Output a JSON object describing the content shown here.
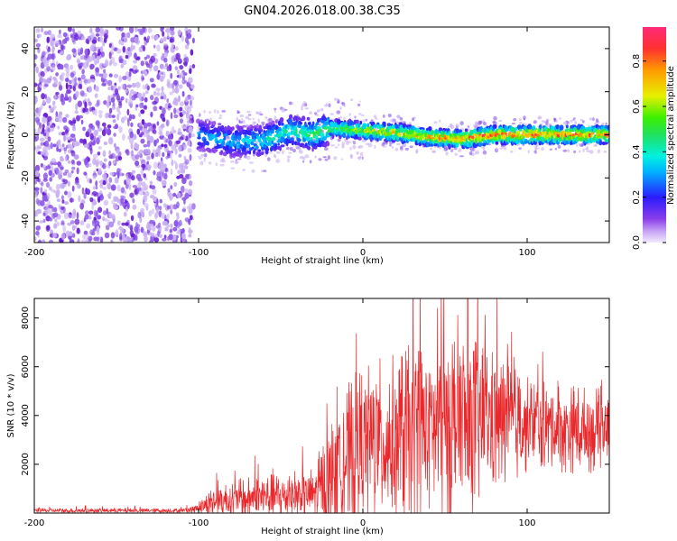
{
  "title": "GN04.2026.018.00.38.C35",
  "colors": {
    "snr_line": "#e8282b",
    "scatter_bg": "#c9b0f2",
    "scatter_mid": "#8a55e8",
    "scatter_dark": "#6a1fd6",
    "axis": "#000000"
  },
  "chart_data": [
    {
      "type": "heatmap",
      "xlabel": "Height of straight line (km)",
      "ylabel": "Frequency (Hz)",
      "xlim": [
        -200,
        150
      ],
      "ylim": [
        -50,
        50
      ],
      "x_ticks": [
        {
          "value": -200,
          "label": "-200"
        },
        {
          "value": -100,
          "label": "-100"
        },
        {
          "value": 0,
          "label": "0"
        },
        {
          "value": 100,
          "label": "100"
        }
      ],
      "y_ticks": [
        {
          "value": -40,
          "label": "-40"
        },
        {
          "value": -20,
          "label": "-20"
        },
        {
          "value": 0,
          "label": "0"
        },
        {
          "value": 20,
          "label": "20"
        },
        {
          "value": 40,
          "label": "40"
        }
      ],
      "colorbar": {
        "label": "Normalized spectral amplitude",
        "range": [
          0,
          0.95
        ],
        "ticks": [
          {
            "value": 0.0,
            "label": "0.0"
          },
          {
            "value": 0.2,
            "label": "0.2"
          },
          {
            "value": 0.4,
            "label": "0.4"
          },
          {
            "value": 0.6,
            "label": "0.6"
          },
          {
            "value": 0.8,
            "label": "0.8"
          }
        ]
      },
      "ridge": {
        "description_x_range": [
          -100,
          150
        ],
        "center_frequency": [
          {
            "x": -100,
            "f": 0
          },
          {
            "x": -80,
            "f": -3
          },
          {
            "x": -60,
            "f": -3
          },
          {
            "x": -45,
            "f": 2
          },
          {
            "x": -30,
            "f": 0
          },
          {
            "x": -20,
            "f": 3
          },
          {
            "x": 0,
            "f": 2
          },
          {
            "x": 20,
            "f": 1
          },
          {
            "x": 40,
            "f": -1
          },
          {
            "x": 60,
            "f": -2
          },
          {
            "x": 80,
            "f": 0
          },
          {
            "x": 100,
            "f": 0
          },
          {
            "x": 150,
            "f": 0
          }
        ],
        "peak_amplitude": [
          {
            "x": -100,
            "a": 0.35
          },
          {
            "x": -60,
            "a": 0.45
          },
          {
            "x": -20,
            "a": 0.6
          },
          {
            "x": 10,
            "a": 0.75
          },
          {
            "x": 40,
            "a": 0.85
          },
          {
            "x": 80,
            "a": 0.95
          },
          {
            "x": 150,
            "a": 0.9
          }
        ]
      },
      "noise_region_x_range": [
        -200,
        -103
      ]
    },
    {
      "type": "line",
      "xlabel": "Height of straight line (km)",
      "ylabel": "SNR (10 * v/v)",
      "xlim": [
        -200,
        150
      ],
      "ylim": [
        0,
        8800
      ],
      "x_ticks": [
        {
          "value": -200,
          "label": "-200"
        },
        {
          "value": -100,
          "label": "-100"
        },
        {
          "value": 0,
          "label": "0"
        },
        {
          "value": 100,
          "label": "100"
        }
      ],
      "y_ticks": [
        {
          "value": 2000,
          "label": "2000"
        },
        {
          "value": 4000,
          "label": "4000"
        },
        {
          "value": 6000,
          "label": "6000"
        },
        {
          "value": 8000,
          "label": "8000"
        }
      ],
      "envelope": [
        {
          "x": -200,
          "median": 100,
          "spread": 100
        },
        {
          "x": -110,
          "median": 100,
          "spread": 100
        },
        {
          "x": -100,
          "median": 200,
          "spread": 250
        },
        {
          "x": -90,
          "median": 500,
          "spread": 700
        },
        {
          "x": -70,
          "median": 600,
          "spread": 900
        },
        {
          "x": -50,
          "median": 700,
          "spread": 1000
        },
        {
          "x": -30,
          "median": 800,
          "spread": 1200
        },
        {
          "x": -20,
          "median": 1200,
          "spread": 2500
        },
        {
          "x": -10,
          "median": 2300,
          "spread": 3000
        },
        {
          "x": 0,
          "median": 2800,
          "spread": 3400
        },
        {
          "x": 20,
          "median": 3000,
          "spread": 3600
        },
        {
          "x": 40,
          "median": 3600,
          "spread": 3800
        },
        {
          "x": 60,
          "median": 3800,
          "spread": 4500
        },
        {
          "x": 80,
          "median": 3700,
          "spread": 3000
        },
        {
          "x": 100,
          "median": 3600,
          "spread": 2000
        },
        {
          "x": 140,
          "median": 3400,
          "spread": 1800
        },
        {
          "x": 150,
          "median": 3500,
          "spread": 1500
        }
      ]
    }
  ]
}
